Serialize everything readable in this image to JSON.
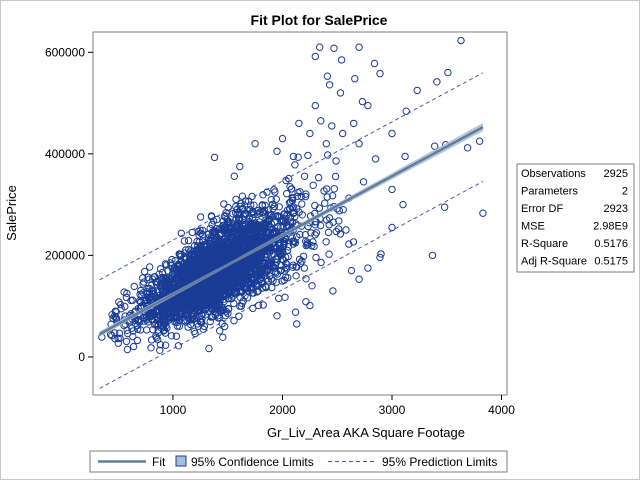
{
  "chart_data": {
    "type": "scatter",
    "title": "Fit Plot for SalePrice",
    "xlabel": "Gr_Liv_Area AKA Square Footage",
    "ylabel": "SalePrice",
    "xlim": [
      270,
      4050
    ],
    "ylim": [
      -75000,
      640000
    ],
    "x_ticks": [
      1000,
      2000,
      3000,
      4000
    ],
    "x_tick_labels": [
      "1000",
      "2000",
      "3000",
      "4000"
    ],
    "y_ticks": [
      0,
      200000,
      400000,
      600000
    ],
    "y_tick_labels": [
      "0",
      "200000",
      "400000",
      "600000"
    ],
    "grid": false,
    "fit_line": {
      "slope": 116.5,
      "intercept": 6500
    },
    "confidence_band_halfwidth": [
      3000,
      8000
    ],
    "prediction_band_halfwidth": 107000,
    "points_outliers": [
      {
        "x": 2340,
        "y": 610000
      },
      {
        "x": 2470,
        "y": 608000
      },
      {
        "x": 3630,
        "y": 623000
      },
      {
        "x": 2300,
        "y": 592000
      },
      {
        "x": 2700,
        "y": 610000
      },
      {
        "x": 2540,
        "y": 585000
      },
      {
        "x": 2840,
        "y": 578000
      },
      {
        "x": 2890,
        "y": 558000
      },
      {
        "x": 3510,
        "y": 560000
      },
      {
        "x": 3410,
        "y": 542000
      },
      {
        "x": 2410,
        "y": 553000
      },
      {
        "x": 2660,
        "y": 548000
      },
      {
        "x": 2430,
        "y": 536000
      },
      {
        "x": 3230,
        "y": 525000
      },
      {
        "x": 2530,
        "y": 520000
      },
      {
        "x": 2730,
        "y": 503000
      },
      {
        "x": 2780,
        "y": 495000
      },
      {
        "x": 3130,
        "y": 484000
      },
      {
        "x": 2300,
        "y": 495000
      },
      {
        "x": 3800,
        "y": 425000
      },
      {
        "x": 3390,
        "y": 415000
      },
      {
        "x": 3490,
        "y": 418000
      },
      {
        "x": 3690,
        "y": 412000
      },
      {
        "x": 3000,
        "y": 440000
      },
      {
        "x": 3120,
        "y": 395000
      },
      {
        "x": 3830,
        "y": 283000
      },
      {
        "x": 3480,
        "y": 295000
      },
      {
        "x": 3370,
        "y": 200000
      },
      {
        "x": 2900,
        "y": 203000
      },
      {
        "x": 2890,
        "y": 196000
      },
      {
        "x": 2700,
        "y": 153000
      },
      {
        "x": 2780,
        "y": 175000
      },
      {
        "x": 3000,
        "y": 255000
      },
      {
        "x": 3100,
        "y": 300000
      },
      {
        "x": 3000,
        "y": 330000
      },
      {
        "x": 2580,
        "y": 250000
      },
      {
        "x": 1380,
        "y": 393000
      },
      {
        "x": 1610,
        "y": 375000
      },
      {
        "x": 1560,
        "y": 356000
      },
      {
        "x": 800,
        "y": 18000
      },
      {
        "x": 500,
        "y": 36000
      },
      {
        "x": 470,
        "y": 36000
      },
      {
        "x": 350,
        "y": 39000
      },
      {
        "x": 880,
        "y": 13000
      },
      {
        "x": 1050,
        "y": 22000
      },
      {
        "x": 2130,
        "y": 65000
      },
      {
        "x": 2120,
        "y": 88000
      },
      {
        "x": 1950,
        "y": 81000
      },
      {
        "x": 1610,
        "y": 100000
      },
      {
        "x": 2250,
        "y": 101000
      },
      {
        "x": 2200,
        "y": 175000
      },
      {
        "x": 2270,
        "y": 140000
      },
      {
        "x": 2460,
        "y": 130000
      },
      {
        "x": 2630,
        "y": 170000
      },
      {
        "x": 2250,
        "y": 440000
      },
      {
        "x": 2400,
        "y": 420000
      },
      {
        "x": 2000,
        "y": 430000
      },
      {
        "x": 1950,
        "y": 405000
      },
      {
        "x": 2100,
        "y": 395000
      },
      {
        "x": 2650,
        "y": 460000
      },
      {
        "x": 2450,
        "y": 455000
      },
      {
        "x": 2550,
        "y": 440000
      },
      {
        "x": 2700,
        "y": 420000
      },
      {
        "x": 2850,
        "y": 390000
      },
      {
        "x": 1750,
        "y": 420000
      },
      {
        "x": 2150,
        "y": 460000
      },
      {
        "x": 2350,
        "y": 465000
      }
    ],
    "main_cloud": {
      "n": 2925,
      "x_mode": 1400,
      "x_spread": 380,
      "x_range": [
        430,
        3300
      ],
      "resid_sd": 40000,
      "y_range": [
        12000,
        470000
      ]
    },
    "legend": {
      "position": "bottom",
      "items": [
        "Fit",
        "95% Confidence Limits",
        "95% Prediction Limits"
      ]
    },
    "stats_table": {
      "position": "right",
      "rows": [
        {
          "label": "Observations",
          "value": "2925"
        },
        {
          "label": "Parameters",
          "value": "2"
        },
        {
          "label": "Error DF",
          "value": "2923"
        },
        {
          "label": "MSE",
          "value": "2.98E9"
        },
        {
          "label": "R-Square",
          "value": "0.5176"
        },
        {
          "label": "Adj R-Square",
          "value": "0.5175"
        }
      ]
    },
    "colors": {
      "marker": "#1a3c96",
      "fit_line": "#5f7d9c",
      "confidence_band": "#a9bdd4",
      "prediction_line": "#4b5aa6",
      "frame": "#7f7f7f"
    }
  }
}
